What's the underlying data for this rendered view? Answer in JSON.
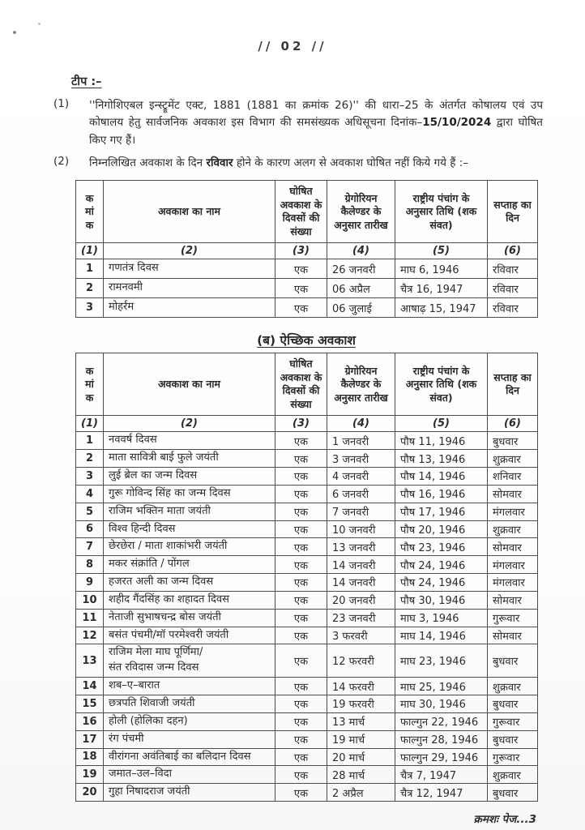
{
  "page": {
    "number": "// 02 //",
    "footer": "क्रमशः पेज...3"
  },
  "notes": {
    "heading": "टीप :–",
    "items": [
      {
        "num": "(1)",
        "pre": "''निगोशिएबल इन्स्ट्रूमेंट एक्ट, 1881 (1881 का क्रमांक 26)'' की धारा–25 के अंतर्गत कोषालय एवं उप कोषालय हेतु सार्वजनिक अवकाश इस विभाग की समसंख्यक अधिसूचना दिनांक–",
        "bold": "15/10/2024",
        "post": " द्वारा घोषित किए गए हैं।"
      },
      {
        "num": "(2)",
        "pre": "निम्नलिखित अवकाश के दिन ",
        "bold": "रविवार",
        "post": " होने के कारण अलग से अवकाश घोषित नहीं किये गये हैं :–"
      }
    ]
  },
  "table_headers": {
    "serial": "क\nमां\nक",
    "name": "अवकाश का नाम",
    "days": "घोषित अवकाश के दिवसों की संख्या",
    "gregorian": "ग्रेगोरियन कैलेण्डर के अनुसार तारीख",
    "panchang": "राष्ट्रीय पंचांग के अनुसार तिथि (शक संवत)",
    "weekday": "सप्ताह का दिन",
    "nums": [
      "(1)",
      "(2)",
      "(3)",
      "(4)",
      "(5)",
      "(6)"
    ]
  },
  "table_a": {
    "rows": [
      {
        "sn": "1",
        "name": "गणतंत्र दिवस",
        "days": "एक",
        "date": "26 जनवरी",
        "panchang": "माघ 6, 1946",
        "weekday": "रविवार"
      },
      {
        "sn": "2",
        "name": "रामनवमी",
        "days": "एक",
        "date": "06 अप्रैल",
        "panchang": "चैत्र 16, 1947",
        "weekday": "रविवार"
      },
      {
        "sn": "3",
        "name": "मोहर्रम",
        "days": "एक",
        "date": "06 जुलाई",
        "panchang": "आषाढ़ 15, 1947",
        "weekday": "रविवार"
      }
    ]
  },
  "table_b": {
    "title": "(ब) ऐच्छिक अवकाश",
    "rows": [
      {
        "sn": "1",
        "name": "नववर्ष दिवस",
        "days": "एक",
        "date": "1 जनवरी",
        "panchang": "पौष 11, 1946",
        "weekday": "बुधवार"
      },
      {
        "sn": "2",
        "name": "माता सावित्री बाई फुले जयंती",
        "days": "एक",
        "date": "3 जनवरी",
        "panchang": "पौष 13, 1946",
        "weekday": "शुक्रवार"
      },
      {
        "sn": "3",
        "name": "लुई ब्रेल का जन्म दिवस",
        "days": "एक",
        "date": "4 जनवरी",
        "panchang": "पौष 14, 1946",
        "weekday": "शनिवार"
      },
      {
        "sn": "4",
        "name": "गुरू गोविन्द सिंह का जन्म दिवस",
        "days": "एक",
        "date": "6 जनवरी",
        "panchang": "पौष 16, 1946",
        "weekday": "सोमवार"
      },
      {
        "sn": "5",
        "name": "राजिम भक्तिन माता जयंती",
        "days": "एक",
        "date": "7 जनवरी",
        "panchang": "पौष 17, 1946",
        "weekday": "मंगलवार"
      },
      {
        "sn": "6",
        "name": "विश्व हिन्दी दिवस",
        "days": "एक",
        "date": "10 जनवरी",
        "panchang": "पौष 20, 1946",
        "weekday": "शुक्रवार"
      },
      {
        "sn": "7",
        "name": "छेरछेरा / माता शाकांभरी जयंती",
        "days": "एक",
        "date": "13 जनवरी",
        "panchang": "पौष 23, 1946",
        "weekday": "सोमवार"
      },
      {
        "sn": "8",
        "name": "मकर संक्रांति / पोंगल",
        "days": "एक",
        "date": "14 जनवरी",
        "panchang": "पौष 24, 1946",
        "weekday": "मंगलवार"
      },
      {
        "sn": "9",
        "name": "हजरत अली का जन्म दिवस",
        "days": "एक",
        "date": "14 जनवरी",
        "panchang": "पौष 24, 1946",
        "weekday": "मंगलवार"
      },
      {
        "sn": "10",
        "name": "शहीद गैंदसिंह का शहादत दिवस",
        "days": "एक",
        "date": "20 जनवरी",
        "panchang": "पौष 30, 1946",
        "weekday": "सोमवार"
      },
      {
        "sn": "11",
        "name": "नेताजी सुभाषचन्द्र बोस जयंती",
        "days": "एक",
        "date": "23 जनवरी",
        "panchang": "माघ 3, 1946",
        "weekday": "गुरूवार"
      },
      {
        "sn": "12",
        "name": "बसंत पंचमी/मॉ परमेश्वरी जयंती",
        "days": "एक",
        "date": "3 फरवरी",
        "panchang": "माघ 14, 1946",
        "weekday": "सोमवार"
      },
      {
        "sn": "13",
        "name": "राजिम मेला माघ पूर्णिमा/\nसंत रविदास जन्म दिवस",
        "days": "एक",
        "date": "12 फरवरी",
        "panchang": "माघ 23, 1946",
        "weekday": "बुधवार"
      },
      {
        "sn": "14",
        "name": "शब–ए–बारात",
        "days": "एक",
        "date": "14 फरवरी",
        "panchang": "माघ 25, 1946",
        "weekday": "शुक्रवार"
      },
      {
        "sn": "15",
        "name": "छत्रपति शिवाजी जयंती",
        "days": "एक",
        "date": "19 फरवरी",
        "panchang": "माघ 30, 1946",
        "weekday": "बुधवार"
      },
      {
        "sn": "16",
        "name": "होली (होलिका दहन)",
        "days": "एक",
        "date": "13 मार्च",
        "panchang": "फाल्गुन 22, 1946",
        "weekday": "गुरूवार"
      },
      {
        "sn": "17",
        "name": "रंग पंचमी",
        "days": "एक",
        "date": "19 मार्च",
        "panchang": "फाल्गुन 28, 1946",
        "weekday": "बुधवार"
      },
      {
        "sn": "18",
        "name": "वीरांगना अवंतिबाई का बलिदान दिवस",
        "days": "एक",
        "date": "20 मार्च",
        "panchang": "फाल्गुन 29, 1946",
        "weekday": "गुरूवार"
      },
      {
        "sn": "19",
        "name": "जमात–उल–विदा",
        "days": "एक",
        "date": "28 मार्च",
        "panchang": "चैत्र 7, 1947",
        "weekday": "शुक्रवार"
      },
      {
        "sn": "20",
        "name": "गुहा निषादराज जयंती",
        "days": "एक",
        "date": "2 अप्रैल",
        "panchang": "चैत्र 12, 1947",
        "weekday": "बुधवार"
      }
    ]
  },
  "colors": {
    "text": "#2e2e2e",
    "border": "#4c4c4c",
    "paper": "#ffffff"
  }
}
